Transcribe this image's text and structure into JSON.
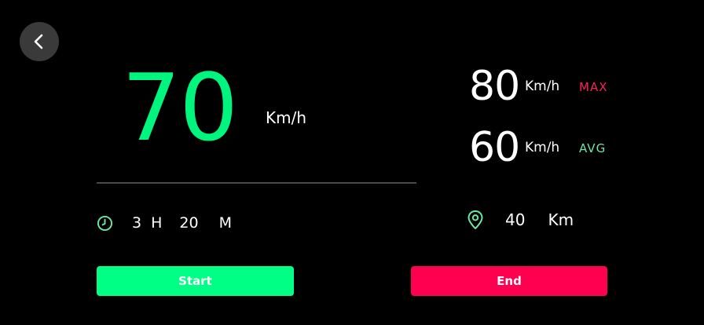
{
  "icons": {
    "back": "chevron-left-icon",
    "clock": "clock-icon",
    "location": "location-pin-icon"
  },
  "colors": {
    "speed": "#00f57e",
    "max_tag": "#ff1f5a",
    "avg_tag": "#6ee7a0",
    "start_button": "#00ff85",
    "end_button": "#ff0050",
    "accent_icon": "#6ee7a0"
  },
  "speed": {
    "value": "70",
    "unit": "Km/h"
  },
  "duration": {
    "hours": "3",
    "hours_unit": "H",
    "minutes": "20",
    "minutes_unit": "M"
  },
  "stats": {
    "max": {
      "value": "80",
      "unit": "Km/h",
      "label": "MAX"
    },
    "avg": {
      "value": "60",
      "unit": "Km/h",
      "label": "AVG"
    }
  },
  "distance": {
    "value": "40",
    "unit": "Km"
  },
  "buttons": {
    "start": "Start",
    "end": "End"
  }
}
